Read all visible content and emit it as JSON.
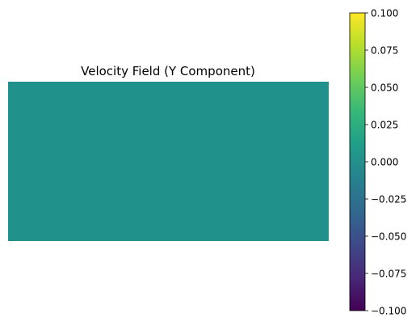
{
  "chart_data": {
    "type": "heatmap",
    "title": "Velocity Field (Y Component)",
    "xlabel": "",
    "ylabel": "",
    "axes_visible": false,
    "grid": false,
    "values": [
      [
        0.0
      ]
    ],
    "colormap": "viridis",
    "field_color": "#21918c",
    "colorbar": {
      "location": "right",
      "vmin": -0.1,
      "vmax": 0.1,
      "ticks": [
        -0.1,
        -0.075,
        -0.05,
        -0.025,
        0.0,
        0.025,
        0.05,
        0.075,
        0.1
      ],
      "tick_labels": [
        "−0.100",
        "−0.075",
        "−0.050",
        "−0.025",
        "0.000",
        "0.025",
        "0.050",
        "0.075",
        "0.100"
      ],
      "colors": [
        "#440154",
        "#482878",
        "#3e4989",
        "#31688e",
        "#26828e",
        "#1f9e89",
        "#35b779",
        "#6ece58",
        "#b5de2b",
        "#fde725"
      ]
    }
  }
}
